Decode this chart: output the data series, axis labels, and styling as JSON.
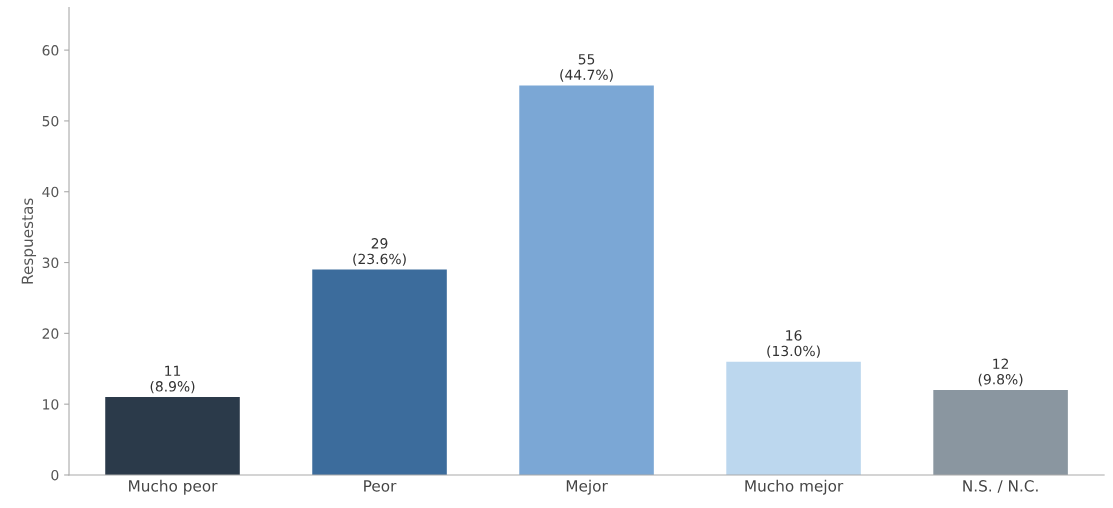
{
  "chart_data": {
    "type": "bar",
    "ylabel": "Respuestas",
    "categories": [
      "Mucho peor",
      "Peor",
      "Mejor",
      "Mucho mejor",
      "N.S. / N.C."
    ],
    "values": [
      11,
      29,
      55,
      16,
      12
    ],
    "colors": [
      "#2b3a4a",
      "#3c6c9c",
      "#7ba7d5",
      "#bcd7ee",
      "#8a96a0"
    ],
    "value_labels": [
      "11\n(8.9%)",
      "29\n(23.6%)",
      "55\n(44.7%)",
      "16\n(13.0%)",
      "12\n(9.8%)"
    ],
    "ylim": [
      0,
      66
    ],
    "yticks": [
      0,
      10,
      20,
      30,
      40,
      50,
      60
    ],
    "grid": false
  }
}
